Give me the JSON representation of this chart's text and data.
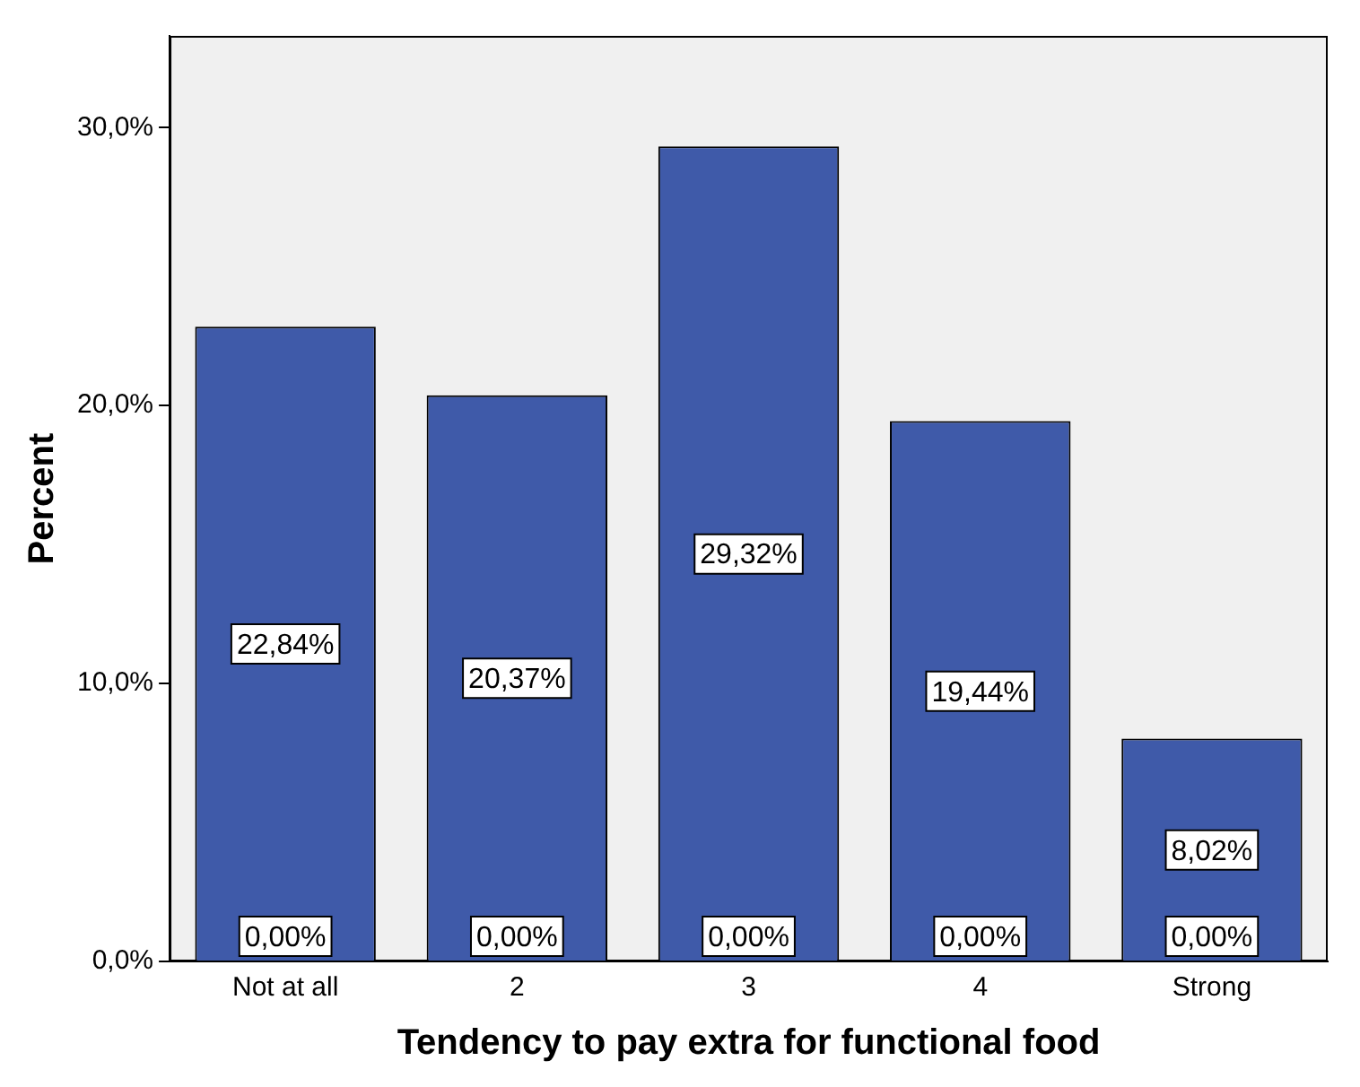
{
  "chart_data": {
    "type": "bar",
    "xlabel": "Tendency to pay extra for functional food",
    "ylabel": "Percent",
    "categories": [
      "Not at all",
      "2",
      "3",
      "4",
      "Strong"
    ],
    "series": [
      {
        "color": "#3f5aa9",
        "values": [
          22.84,
          20.37,
          29.32,
          19.44,
          8.02
        ],
        "value_labels": [
          "22,84%",
          "20,37%",
          "29,32%",
          "19,44%",
          "8,02%"
        ]
      }
    ],
    "ylim": [
      0,
      33.3
    ],
    "yticks": [
      {
        "value": 0,
        "label": "0,0%"
      },
      {
        "value": 10,
        "label": "10,0%"
      },
      {
        "value": 20,
        "label": "20,0%"
      },
      {
        "value": 30,
        "label": "30,0%"
      }
    ],
    "annotations": [
      {
        "text": "0,00%",
        "x": "Not at all",
        "y": 0
      },
      {
        "text": "0,00%",
        "x": "2",
        "y": 0
      },
      {
        "text": "0,00%",
        "x": "3",
        "y": 0
      },
      {
        "text": "0,00%",
        "x": "4",
        "y": 0
      },
      {
        "text": "0,00%",
        "x": "Strong",
        "y": 0
      }
    ],
    "grid": false,
    "legend": false
  }
}
